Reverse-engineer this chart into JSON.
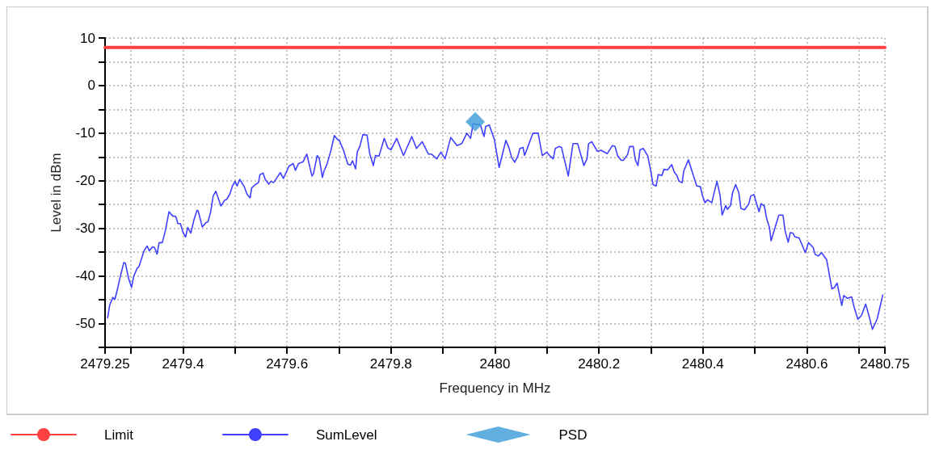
{
  "chart_data": {
    "type": "line",
    "xlabel": "Frequency in MHz",
    "ylabel": "Level in dBm",
    "xlim": [
      2479.25,
      2480.75
    ],
    "ylim": [
      -55,
      10
    ],
    "xticks": [
      2479.25,
      {
        "value": 2479.3,
        "label": null
      },
      2479.4,
      {
        "value": 2479.5,
        "label": null
      },
      2479.6,
      {
        "value": 2479.7,
        "label": null
      },
      2479.8,
      {
        "value": 2479.9,
        "label": null
      },
      2480,
      {
        "value": 2480.1,
        "label": null
      },
      2480.2,
      {
        "value": 2480.3,
        "label": null
      },
      2480.4,
      {
        "value": 2480.5,
        "label": null
      },
      2480.6,
      {
        "value": 2480.7,
        "label": null
      },
      2480.75
    ],
    "yticks": [
      {
        "value": -55,
        "label": null
      },
      -50,
      {
        "value": -45,
        "label": null
      },
      -40,
      {
        "value": -35,
        "label": null
      },
      -30,
      {
        "value": -25,
        "label": null
      },
      -20,
      {
        "value": -15,
        "label": null
      },
      -10,
      {
        "value": -5,
        "label": null
      },
      0,
      {
        "value": 5,
        "label": null
      },
      10
    ],
    "grid": true,
    "legend": "bottom",
    "series": [
      {
        "name": "Limit",
        "color": "#ff4040",
        "marker": "none",
        "line_style": "solid",
        "x": [
          2479.25,
          2480.75
        ],
        "values": [
          8,
          8
        ]
      },
      {
        "name": "SumLevel",
        "color": "#4040ff",
        "marker": "none",
        "line_style": "solid",
        "x": [
          2479.255,
          2479.259,
          2479.265,
          2479.269,
          2479.274,
          2479.28,
          2479.286,
          2479.289,
          2479.295,
          2479.301,
          2479.305,
          2479.312,
          2479.315,
          2479.325,
          2479.331,
          2479.335,
          2479.341,
          2479.345,
          2479.35,
          2479.354,
          2479.36,
          2479.366,
          2479.373,
          2479.38,
          2479.386,
          2479.39,
          2479.395,
          2479.4,
          2479.405,
          2479.409,
          2479.415,
          2479.421,
          2479.427,
          2479.429,
          2479.437,
          2479.444,
          2479.448,
          2479.453,
          2479.458,
          2479.463,
          2479.473,
          2479.48,
          2479.484,
          2479.49,
          2479.495,
          2479.5,
          2479.504,
          2479.509,
          2479.518,
          2479.523,
          2479.529,
          2479.532,
          2479.539,
          2479.545,
          2479.548,
          2479.554,
          2479.558,
          2479.565,
          2479.569,
          2479.574,
          2479.581,
          2479.587,
          2479.593,
          2479.604,
          2479.612,
          2479.616,
          2479.622,
          2479.631,
          2479.638,
          2479.648,
          2479.651,
          2479.658,
          2479.662,
          2479.668,
          2479.671,
          2479.677,
          2479.685,
          2479.691,
          2479.697,
          2479.701,
          2479.709,
          2479.717,
          2479.722,
          2479.726,
          2479.732,
          2479.735,
          2479.74,
          2479.746,
          2479.754,
          2479.759,
          2479.766,
          2479.77,
          2479.777,
          2479.787,
          2479.794,
          2479.8,
          2479.811,
          2479.824,
          2479.84,
          2479.849,
          2479.86,
          2479.872,
          2479.878,
          2479.888,
          2479.896,
          2479.904,
          2479.915,
          2479.927,
          2479.936,
          2479.946,
          2479.953,
          2479.958,
          2479.972,
          2479.979,
          2479.982,
          2479.989,
          2479.999,
          2480.008,
          2480.021,
          2480.027,
          2480.032,
          2480.038,
          2480.044,
          2480.048,
          2480.054,
          2480.057,
          2480.073,
          2480.083,
          2480.091,
          2480.1,
          2480.105,
          2480.112,
          2480.116,
          2480.123,
          2480.128,
          2480.141,
          2480.15,
          2480.159,
          2480.171,
          2480.177,
          2480.18,
          2480.186,
          2480.197,
          2480.204,
          2480.216,
          2480.226,
          2480.231,
          2480.236,
          2480.243,
          2480.247,
          2480.255,
          2480.259,
          2480.266,
          2480.27,
          2480.275,
          2480.279,
          2480.285,
          2480.294,
          2480.3,
          2480.304,
          2480.31,
          2480.314,
          2480.321,
          2480.325,
          2480.332,
          2480.34,
          2480.345,
          2480.35,
          2480.354,
          2480.36,
          2480.363,
          2480.372,
          2480.388,
          2480.395,
          2480.399,
          2480.404,
          2480.409,
          2480.417,
          2480.427,
          2480.433,
          2480.437,
          2480.444,
          2480.447,
          2480.453,
          2480.457,
          2480.463,
          2480.469,
          2480.473,
          2480.48,
          2480.488,
          2480.492,
          2480.498,
          2480.504,
          2480.508,
          2480.512,
          2480.518,
          2480.523,
          2480.528,
          2480.531,
          2480.546,
          2480.554,
          2480.558,
          2480.564,
          2480.568,
          2480.573,
          2480.577,
          2480.585,
          2480.597,
          2480.603,
          2480.612,
          2480.616,
          2480.622,
          2480.628,
          2480.638,
          2480.642,
          2480.648,
          2480.653,
          2480.658,
          2480.667,
          2480.671,
          2480.678,
          2480.686,
          2480.691,
          2480.698,
          2480.705,
          2480.713,
          2480.72,
          2480.726,
          2480.735,
          2480.746
        ],
        "values": [
          -48.8,
          -46.1,
          -44.5,
          -44.9,
          -42.7,
          -39.8,
          -37.2,
          -37.3,
          -40.4,
          -42.4,
          -40.1,
          -38.3,
          -38.1,
          -34.7,
          -33.7,
          -34.7,
          -33.9,
          -34,
          -35.4,
          -33,
          -33,
          -30.5,
          -26.5,
          -27.4,
          -27.5,
          -29,
          -29,
          -30.9,
          -31.8,
          -29.8,
          -31,
          -28.2,
          -26.2,
          -26.3,
          -29.7,
          -28.8,
          -28.6,
          -26.6,
          -23.2,
          -22.2,
          -25.3,
          -24.1,
          -23.9,
          -22.8,
          -21.1,
          -20.1,
          -21.1,
          -19.7,
          -21.3,
          -22.8,
          -23.6,
          -21.5,
          -20.8,
          -20.4,
          -18.7,
          -18.4,
          -19.7,
          -20.7,
          -20.1,
          -20.4,
          -19.3,
          -18.3,
          -19.5,
          -16.9,
          -16.4,
          -17.8,
          -16.4,
          -16,
          -14.4,
          -19,
          -18.5,
          -14.7,
          -15.3,
          -19.3,
          -18,
          -16.5,
          -13.4,
          -10.5,
          -11.3,
          -11.6,
          -13.7,
          -16.5,
          -16.7,
          -15.8,
          -17.5,
          -14,
          -12.8,
          -10.3,
          -10.4,
          -14.3,
          -16.8,
          -14.7,
          -14.8,
          -11.1,
          -13.1,
          -13.5,
          -11.1,
          -14.7,
          -10.7,
          -13.2,
          -11.8,
          -14.4,
          -14.4,
          -15.4,
          -14,
          -15.4,
          -10.9,
          -12.6,
          -12.2,
          -10,
          -11.1,
          -8,
          -8.3,
          -10.7,
          -8.6,
          -8.3,
          -11.4,
          -17.2,
          -11.5,
          -13.1,
          -15.1,
          -16.1,
          -14.8,
          -13.2,
          -13,
          -14.7,
          -10,
          -10,
          -14.7,
          -14,
          -14.7,
          -15.4,
          -13.2,
          -12.8,
          -13,
          -19,
          -12.2,
          -12.2,
          -16.8,
          -15.4,
          -12.2,
          -11.8,
          -13.8,
          -13.6,
          -14.3,
          -12.6,
          -12.8,
          -14.8,
          -15.7,
          -15.7,
          -14.5,
          -12.8,
          -12.8,
          -15.6,
          -16.8,
          -13.5,
          -13.2,
          -14.8,
          -18.2,
          -20.8,
          -21.1,
          -18.7,
          -18.9,
          -17.6,
          -17.7,
          -16.6,
          -18.2,
          -18.9,
          -20.1,
          -20.4,
          -18,
          -15.6,
          -21.1,
          -21.2,
          -23.1,
          -24.6,
          -24,
          -24.6,
          -20.1,
          -23.1,
          -27.2,
          -25.2,
          -26,
          -25.2,
          -22.5,
          -20.8,
          -22.5,
          -25.8,
          -26.1,
          -24.9,
          -23.2,
          -22.9,
          -25.1,
          -26.5,
          -24.8,
          -25.3,
          -28.1,
          -29.8,
          -32.6,
          -27.2,
          -27.2,
          -30.5,
          -32.9,
          -30.9,
          -31,
          -31.8,
          -32,
          -35.1,
          -33,
          -34,
          -35.5,
          -35.8,
          -35.1,
          -36.6,
          -39,
          -42.7,
          -42.4,
          -41.5,
          -46.2,
          -44.1,
          -44.7,
          -44.4,
          -46.6,
          -49.1,
          -48.3,
          -45.9,
          -48.6,
          -51.2,
          -49.1,
          -44
        ]
      },
      {
        "name": "PSD",
        "type": "scatter",
        "color": "#3a9ad9",
        "marker": "diamond",
        "x": [
          2479.962
        ],
        "values": [
          -7.6
        ]
      }
    ]
  }
}
